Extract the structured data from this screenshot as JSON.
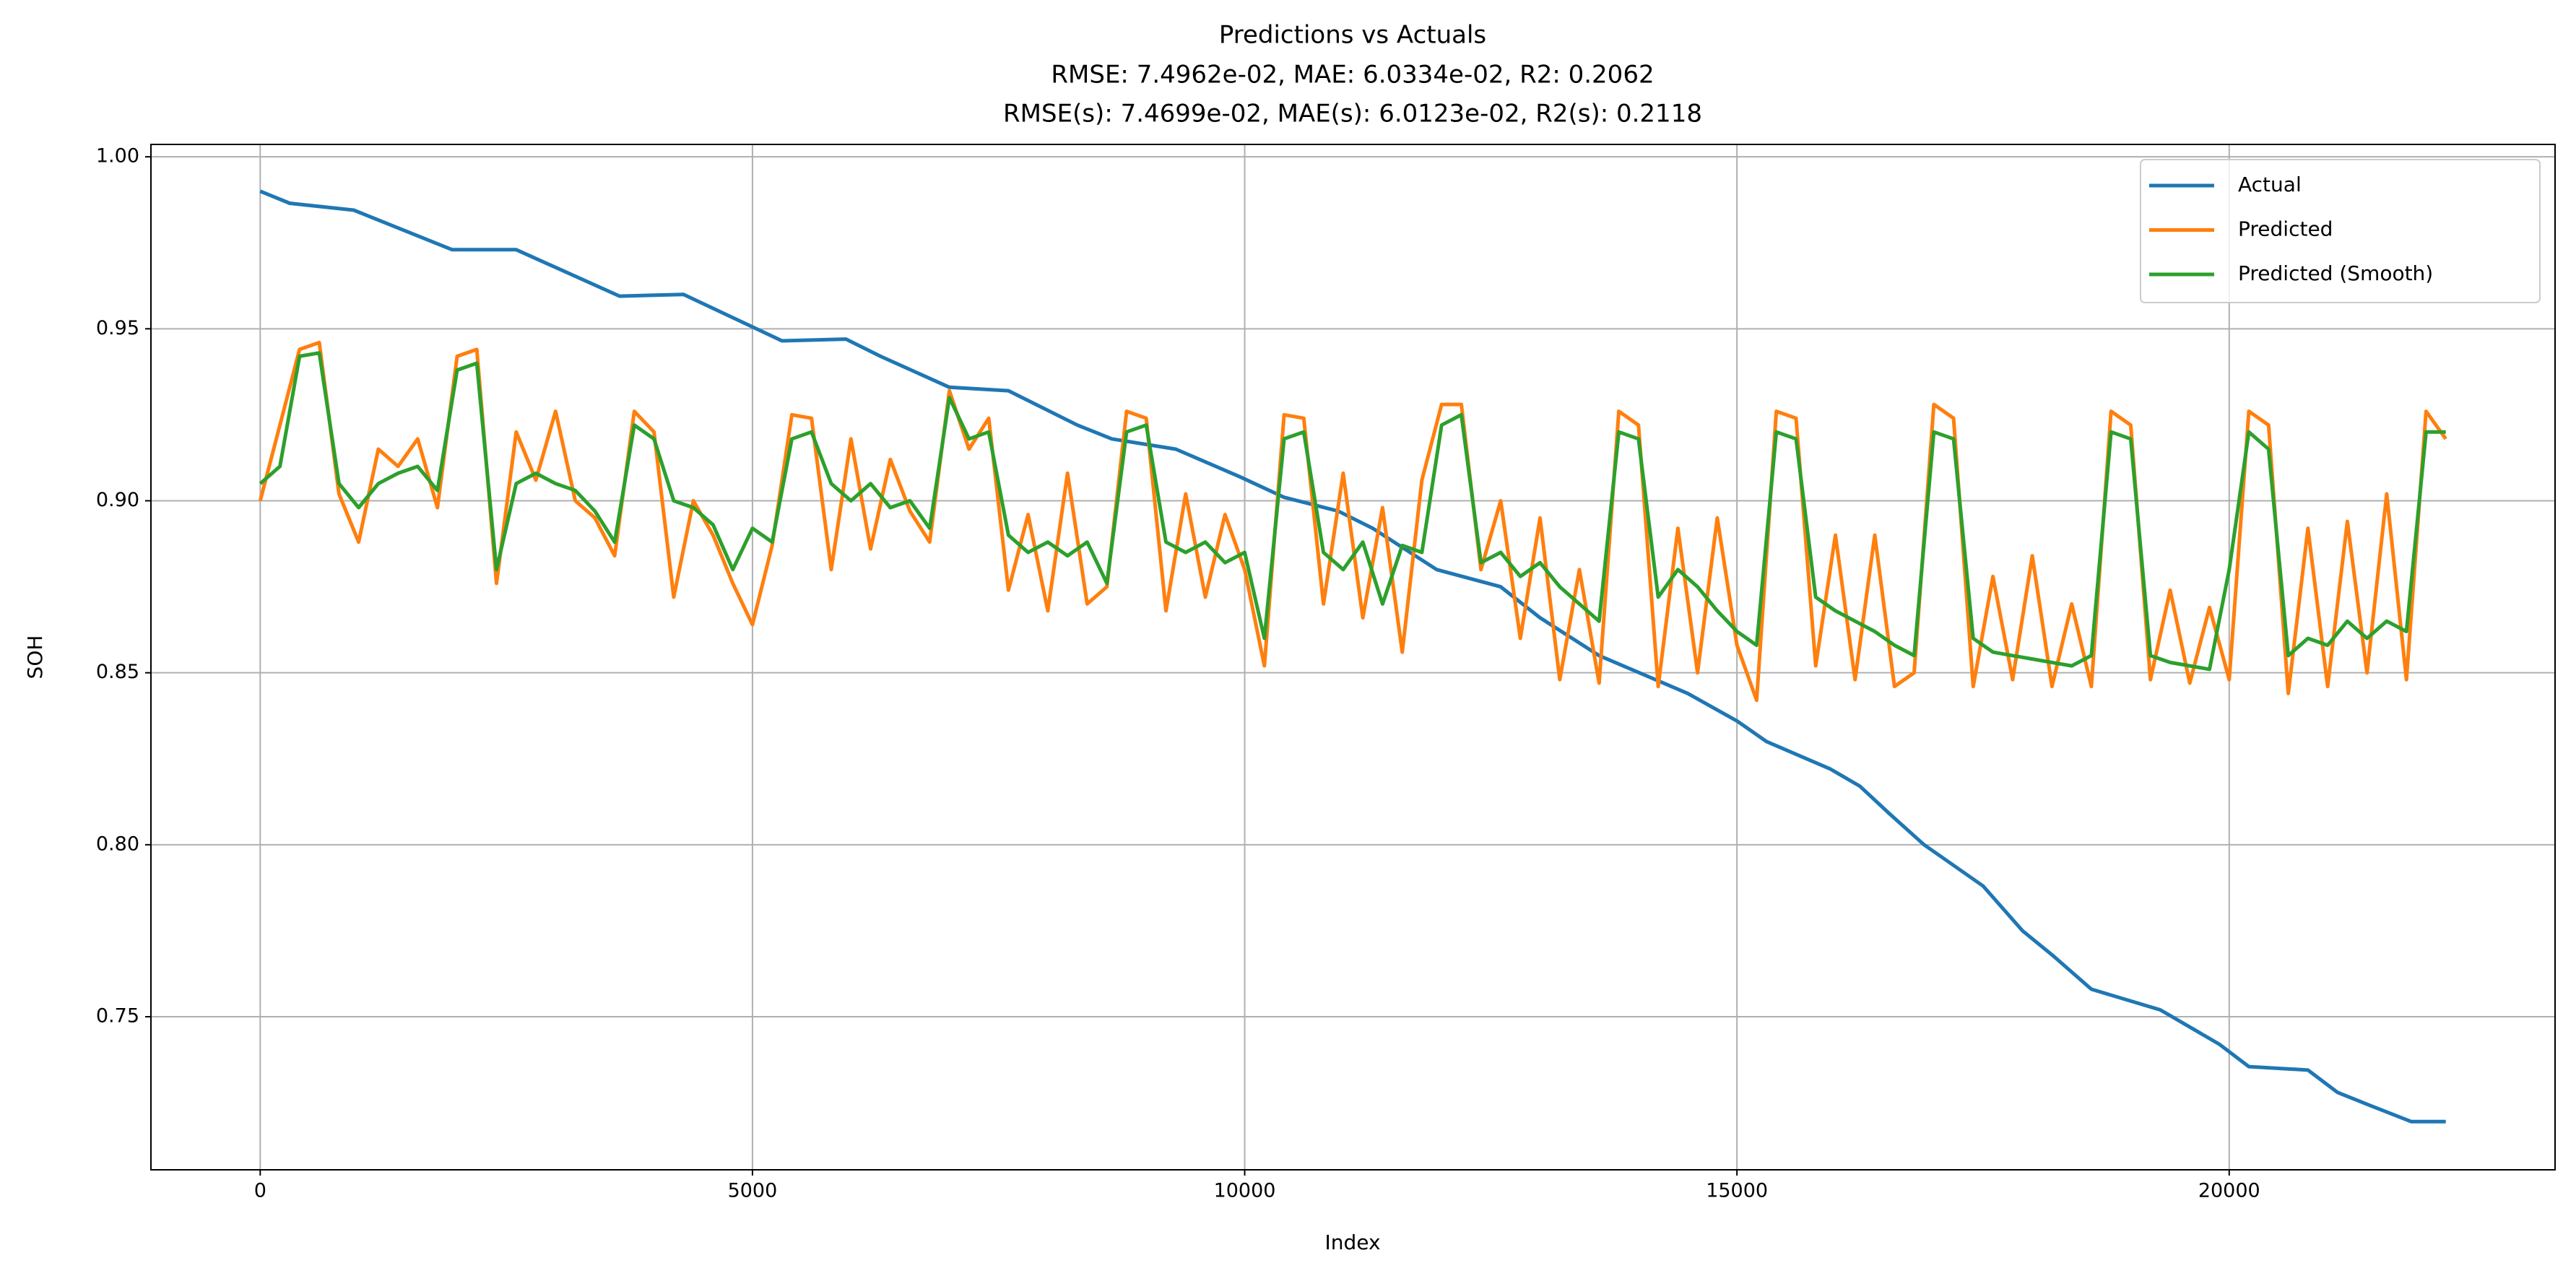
{
  "chart_data": {
    "type": "line",
    "title": "Predictions vs Actuals",
    "subtitle": [
      "RMSE: 7.4962e-02, MAE: 6.0334e-02, R2: 0.2062",
      "RMSE(s): 7.4699e-02, MAE(s): 6.0123e-02, R2(s): 0.2118"
    ],
    "x_label": "Index",
    "y_label": "SOH",
    "xlim": [
      -1110,
      23310
    ],
    "ylim": [
      0.7055,
      1.0036
    ],
    "xticks": [
      0,
      5000,
      10000,
      15000,
      20000
    ],
    "yticks": [
      0.75,
      {
        "value": 0.8,
        "label": "0.80"
      },
      0.85,
      {
        "value": 0.9,
        "label": "0.90"
      },
      0.95,
      {
        "value": 1.0,
        "label": "1.00"
      }
    ],
    "grid": true,
    "legend": "upper right",
    "series": [
      {
        "name": "Actual",
        "color": "#1f77b4",
        "x": [
          0,
          300,
          950,
          1950,
          2600,
          3650,
          4300,
          5300,
          5950,
          6300,
          7000,
          7600,
          8300,
          8650,
          9300,
          9950,
          10400,
          10950,
          11300,
          11950,
          12600,
          13000,
          13600,
          14500,
          15000,
          15300,
          15950,
          16250,
          16550,
          16900,
          17500,
          17900,
          18200,
          18600,
          19300,
          19900,
          20200,
          20800,
          21100,
          21450,
          21850,
          22200
        ],
        "values": [
          0.99,
          0.9865,
          0.9845,
          0.973,
          0.973,
          0.9595,
          0.96,
          0.9465,
          0.947,
          0.942,
          0.933,
          0.932,
          0.922,
          0.918,
          0.915,
          0.907,
          0.901,
          0.897,
          0.892,
          0.88,
          0.875,
          0.866,
          0.855,
          0.844,
          0.836,
          0.83,
          0.822,
          0.817,
          0.809,
          0.8,
          0.788,
          0.775,
          0.768,
          0.758,
          0.752,
          0.742,
          0.7355,
          0.7345,
          0.728,
          0.724,
          0.7195,
          0.7195
        ]
      },
      {
        "name": "Predicted",
        "color": "#ff7f0e",
        "x": [
          0,
          200,
          400,
          600,
          800,
          1000,
          1200,
          1400,
          1600,
          1800,
          2000,
          2200,
          2400,
          2600,
          2800,
          3000,
          3200,
          3400,
          3600,
          3800,
          4000,
          4200,
          4400,
          4600,
          4800,
          5000,
          5200,
          5400,
          5600,
          5800,
          6000,
          6200,
          6400,
          6600,
          6800,
          7000,
          7200,
          7400,
          7600,
          7800,
          8000,
          8200,
          8400,
          8600,
          8800,
          9000,
          9200,
          9400,
          9600,
          9800,
          10000,
          10200,
          10400,
          10600,
          10800,
          11000,
          11200,
          11400,
          11600,
          11800,
          12000,
          12200,
          12400,
          12600,
          12800,
          13000,
          13200,
          13400,
          13600,
          13800,
          14000,
          14200,
          14400,
          14600,
          14800,
          15000,
          15200,
          15400,
          15600,
          15800,
          16000,
          16200,
          16400,
          16600,
          16800,
          17000,
          17200,
          17400,
          17600,
          17800,
          18000,
          18200,
          18400,
          18600,
          18800,
          19000,
          19200,
          19400,
          19600,
          19800,
          20000,
          20200,
          20400,
          20600,
          20800,
          21000,
          21200,
          21400,
          21600,
          21800,
          22000,
          22200
        ],
        "values": [
          0.9,
          0.922,
          0.944,
          0.946,
          0.902,
          0.888,
          0.915,
          0.91,
          0.918,
          0.898,
          0.942,
          0.944,
          0.876,
          0.92,
          0.906,
          0.926,
          0.9,
          0.895,
          0.884,
          0.926,
          0.92,
          0.872,
          0.9,
          0.89,
          0.876,
          0.864,
          0.887,
          0.925,
          0.924,
          0.88,
          0.918,
          0.886,
          0.912,
          0.897,
          0.888,
          0.932,
          0.915,
          0.924,
          0.874,
          0.896,
          0.868,
          0.908,
          0.87,
          0.875,
          0.926,
          0.924,
          0.868,
          0.902,
          0.872,
          0.896,
          0.88,
          0.852,
          0.925,
          0.924,
          0.87,
          0.908,
          0.866,
          0.898,
          0.856,
          0.906,
          0.928,
          0.928,
          0.88,
          0.9,
          0.86,
          0.895,
          0.848,
          0.88,
          0.847,
          0.926,
          0.922,
          0.846,
          0.892,
          0.85,
          0.895,
          0.858,
          0.842,
          0.926,
          0.924,
          0.852,
          0.89,
          0.848,
          0.89,
          0.846,
          0.85,
          0.928,
          0.924,
          0.846,
          0.878,
          0.848,
          0.884,
          0.846,
          0.87,
          0.846,
          0.926,
          0.922,
          0.848,
          0.874,
          0.847,
          0.869,
          0.848,
          0.926,
          0.922,
          0.844,
          0.892,
          0.846,
          0.894,
          0.85,
          0.902,
          0.848,
          0.926,
          0.918
        ]
      },
      {
        "name": "Predicted (Smooth)",
        "color": "#2ca02c",
        "x": [
          0,
          200,
          400,
          600,
          800,
          1000,
          1200,
          1400,
          1600,
          1800,
          2000,
          2200,
          2400,
          2600,
          2800,
          3000,
          3200,
          3400,
          3600,
          3800,
          4000,
          4200,
          4400,
          4600,
          4800,
          5000,
          5200,
          5400,
          5600,
          5800,
          6000,
          6200,
          6400,
          6600,
          6800,
          7000,
          7200,
          7400,
          7600,
          7800,
          8000,
          8200,
          8400,
          8600,
          8800,
          9000,
          9200,
          9400,
          9600,
          9800,
          10000,
          10200,
          10400,
          10600,
          10800,
          11000,
          11200,
          11400,
          11600,
          11800,
          12000,
          12200,
          12400,
          12600,
          12800,
          13000,
          13200,
          13400,
          13600,
          13800,
          14000,
          14200,
          14400,
          14600,
          14800,
          15000,
          15200,
          15400,
          15600,
          15800,
          16000,
          16200,
          16400,
          16600,
          16800,
          17000,
          17200,
          17400,
          17600,
          17800,
          18000,
          18200,
          18400,
          18600,
          18800,
          19000,
          19200,
          19400,
          19600,
          19800,
          20000,
          20200,
          20400,
          20600,
          20800,
          21000,
          21200,
          21400,
          21600,
          21800,
          22000,
          22200
        ],
        "values": [
          0.905,
          0.91,
          0.942,
          0.943,
          0.905,
          0.898,
          0.905,
          0.908,
          0.91,
          0.903,
          0.938,
          0.94,
          0.88,
          0.905,
          0.908,
          0.905,
          0.903,
          0.897,
          0.888,
          0.922,
          0.918,
          0.9,
          0.898,
          0.893,
          0.88,
          0.892,
          0.888,
          0.918,
          0.92,
          0.905,
          0.9,
          0.905,
          0.898,
          0.9,
          0.892,
          0.93,
          0.918,
          0.92,
          0.89,
          0.885,
          0.888,
          0.884,
          0.888,
          0.876,
          0.92,
          0.922,
          0.888,
          0.885,
          0.888,
          0.882,
          0.885,
          0.86,
          0.918,
          0.92,
          0.885,
          0.88,
          0.888,
          0.87,
          0.887,
          0.885,
          0.922,
          0.925,
          0.882,
          0.885,
          0.878,
          0.882,
          0.875,
          0.87,
          0.865,
          0.92,
          0.918,
          0.872,
          0.88,
          0.875,
          0.868,
          0.862,
          0.858,
          0.92,
          0.918,
          0.872,
          0.868,
          0.865,
          0.862,
          0.858,
          0.855,
          0.92,
          0.918,
          0.86,
          0.856,
          0.855,
          0.854,
          0.853,
          0.852,
          0.855,
          0.92,
          0.918,
          0.855,
          0.853,
          0.852,
          0.851,
          0.88,
          0.92,
          0.915,
          0.855,
          0.86,
          0.858,
          0.865,
          0.86,
          0.865,
          0.862,
          0.92,
          0.92
        ]
      }
    ]
  }
}
